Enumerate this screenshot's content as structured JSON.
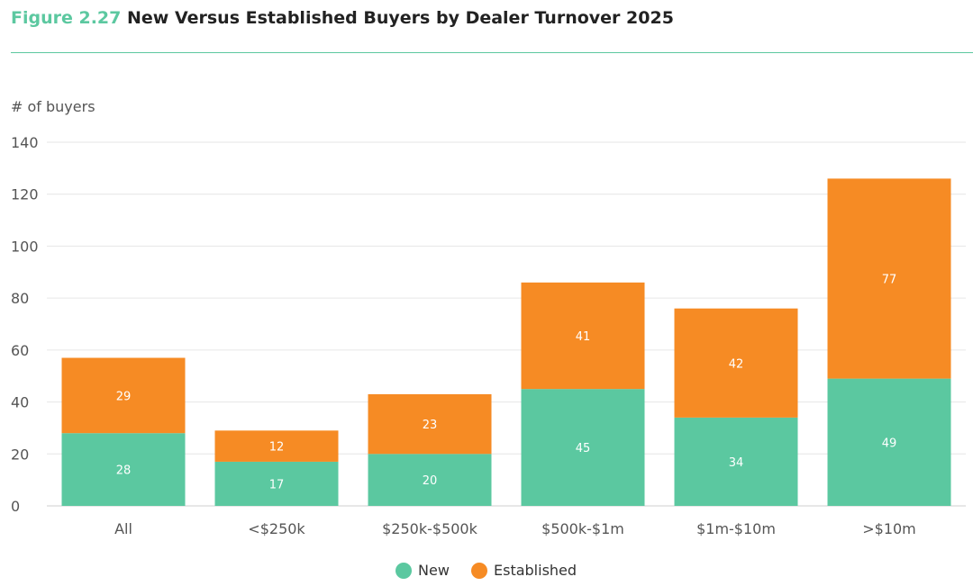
{
  "figure": {
    "label": "Figure 2.27",
    "title": "New Versus Established Buyers by Dealer Turnover 2025"
  },
  "chart_data": {
    "type": "bar",
    "stacked": true,
    "categories": [
      "All",
      "<$250k",
      "$250k-$500k",
      "$500k-$1m",
      "$1m-$10m",
      ">$10m"
    ],
    "series": [
      {
        "name": "New",
        "color": "#5bc8a0",
        "values": [
          28,
          17,
          20,
          45,
          34,
          49
        ]
      },
      {
        "name": "Established",
        "color": "#f68b24",
        "values": [
          29,
          12,
          23,
          41,
          42,
          77
        ]
      }
    ],
    "ylabel": "# of buyers",
    "xlabel": "",
    "ylim": [
      0,
      140
    ],
    "yticks": [
      0,
      20,
      40,
      60,
      80,
      100,
      120,
      140
    ],
    "grid": true,
    "legend": "bottom-center"
  }
}
